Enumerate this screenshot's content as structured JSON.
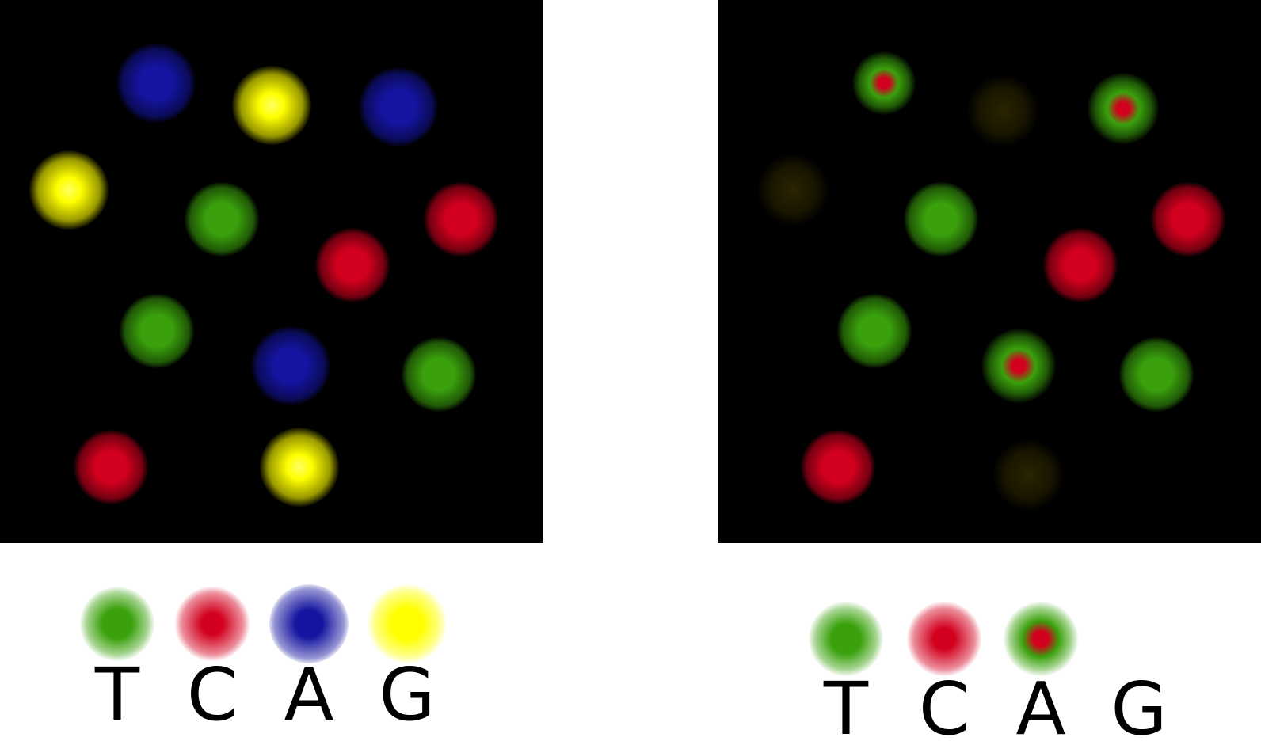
{
  "colors": {
    "green": "#3aa10c",
    "red": "#d2001e",
    "blue": "#1414a0",
    "yellow": "#ffff00",
    "faint": "#2a2400",
    "background": "#000000"
  },
  "left_panel": {
    "spots": [
      {
        "color": "blue"
      },
      {
        "color": "yellow"
      },
      {
        "color": "blue"
      },
      {
        "color": "yellow"
      },
      {
        "color": "green"
      },
      {
        "color": "red"
      },
      {
        "color": "red"
      },
      {
        "color": "green"
      },
      {
        "color": "blue"
      },
      {
        "color": "green"
      },
      {
        "color": "red"
      },
      {
        "color": "yellow"
      }
    ]
  },
  "right_panel": {
    "spots": [
      {
        "color": "green-red"
      },
      {
        "color": "faint"
      },
      {
        "color": "green-red"
      },
      {
        "color": "faint"
      },
      {
        "color": "green"
      },
      {
        "color": "red"
      },
      {
        "color": "red"
      },
      {
        "color": "green"
      },
      {
        "color": "green-red"
      },
      {
        "color": "green"
      },
      {
        "color": "red"
      },
      {
        "color": "faint"
      }
    ]
  },
  "legend_left": {
    "items": [
      {
        "letter": "T",
        "color": "green"
      },
      {
        "letter": "C",
        "color": "red"
      },
      {
        "letter": "A",
        "color": "blue"
      },
      {
        "letter": "G",
        "color": "yellow"
      }
    ]
  },
  "legend_right": {
    "items": [
      {
        "letter": "T",
        "color": "green"
      },
      {
        "letter": "C",
        "color": "red"
      },
      {
        "letter": "A",
        "color": "green-red"
      },
      {
        "letter": "G",
        "color": "none"
      }
    ]
  }
}
